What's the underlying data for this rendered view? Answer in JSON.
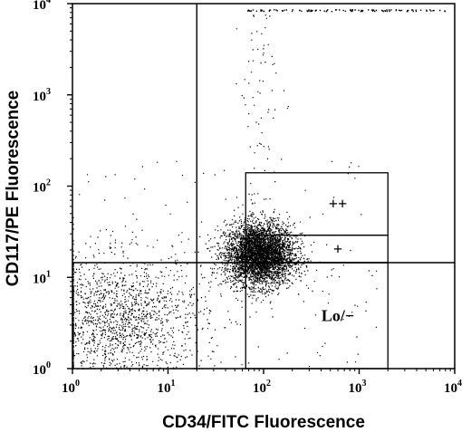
{
  "chart_data": {
    "type": "scatter",
    "title": "",
    "xlabel": "CD34/FITC Fluorescence",
    "ylabel": "CD117/PE Fluorescence",
    "x_scale": "log",
    "y_scale": "log",
    "xlim": [
      1,
      10000
    ],
    "ylim": [
      1,
      10000
    ],
    "x_ticks": [
      {
        "mantissa": "10",
        "exponent": "0"
      },
      {
        "mantissa": "10",
        "exponent": "1"
      },
      {
        "mantissa": "10",
        "exponent": "2"
      },
      {
        "mantissa": "10",
        "exponent": "3"
      },
      {
        "mantissa": "10",
        "exponent": "4"
      }
    ],
    "y_ticks": [
      {
        "mantissa": "10",
        "exponent": "0"
      },
      {
        "mantissa": "10",
        "exponent": "1"
      },
      {
        "mantissa": "10",
        "exponent": "2"
      },
      {
        "mantissa": "10",
        "exponent": "3"
      },
      {
        "mantissa": "10",
        "exponent": "4"
      }
    ],
    "grid": false,
    "quadrant_lines": {
      "x": 20,
      "y": 14.5
    },
    "gates": [
      {
        "label": "++",
        "x_range": [
          65,
          2000
        ],
        "y_range": [
          29,
          140
        ]
      },
      {
        "label": "+",
        "x_range": [
          65,
          2000
        ],
        "y_range": [
          14.5,
          29
        ]
      },
      {
        "label": "Lo/−",
        "x_range": [
          65,
          2000
        ],
        "y_range": [
          1,
          14.5
        ]
      }
    ],
    "populations": [
      {
        "name": "",
        "center_x": 90,
        "center_y": 18,
        "spread_x_decades": 0.18,
        "spread_y_decades": 0.17,
        "count": 4200
      },
      {
        "name": "",
        "center_x": 3,
        "center_y": 3.5,
        "spread_x_decades": 0.45,
        "spread_y_decades": 0.35,
        "count": 1600
      }
    ],
    "point_color": "#000000"
  }
}
